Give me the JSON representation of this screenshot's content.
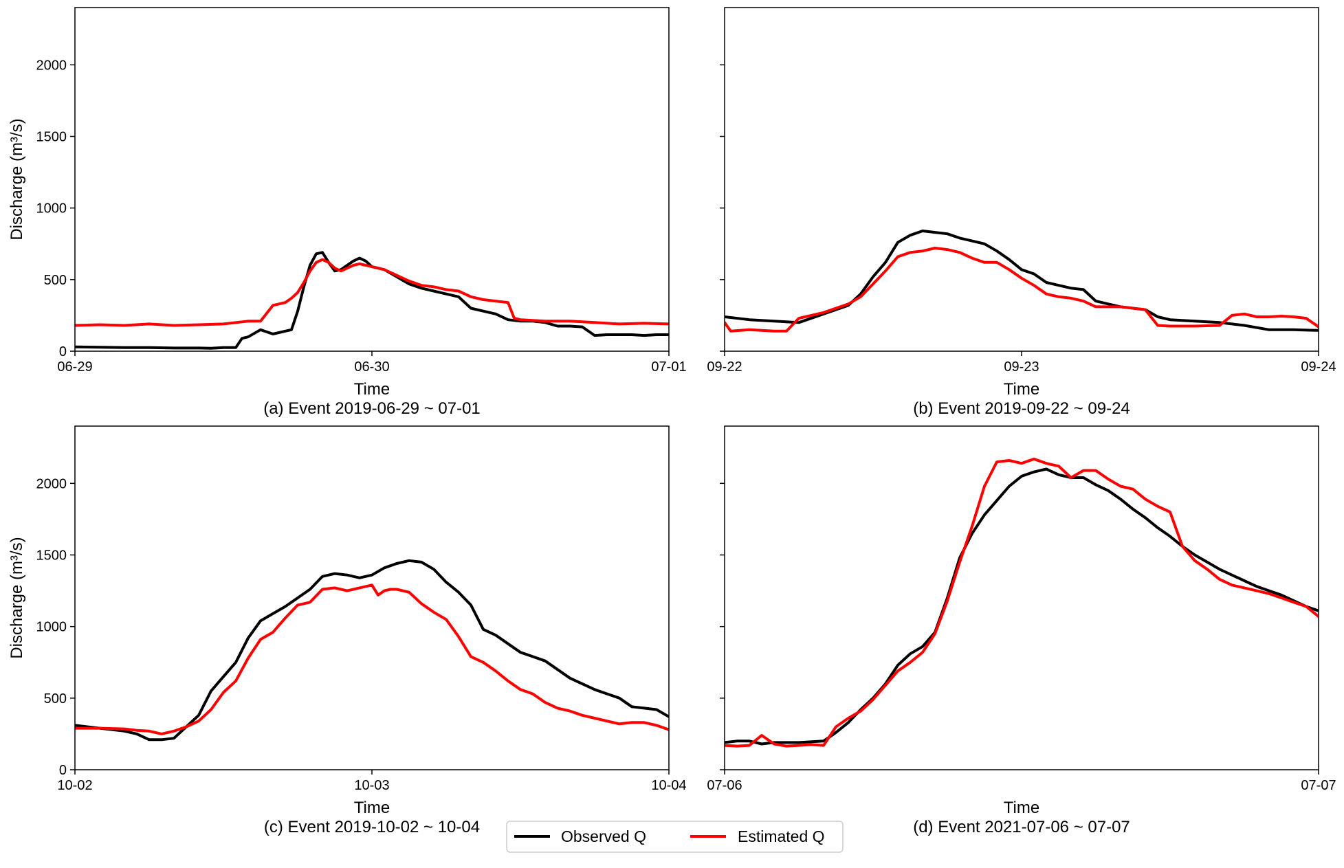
{
  "figure": {
    "legend": {
      "entries": [
        {
          "label": "Observed Q",
          "color": "#000000"
        },
        {
          "label": "Estimated Q",
          "color": "#ff0000"
        }
      ],
      "placement": "bottom-center"
    }
  },
  "chart_data": [
    {
      "type": "line",
      "title": "(a) Event 2019-06-29 ~ 07-01",
      "xlabel": "Time",
      "ylabel": "Discharge (m³/s)",
      "xlim": [
        0,
        48
      ],
      "ylim": [
        0,
        2400
      ],
      "yticks": [
        0,
        500,
        1000,
        1500,
        2000
      ],
      "xtick_labels": [
        {
          "x": 0,
          "label": "06-29"
        },
        {
          "x": 24,
          "label": "06-30"
        },
        {
          "x": 48,
          "label": "07-01"
        }
      ],
      "series": [
        {
          "name": "Observed Q",
          "color": "#000000",
          "x": [
            0,
            2,
            4,
            6,
            8,
            10,
            11,
            12,
            13,
            13.5,
            14,
            15,
            16,
            17,
            17.5,
            18,
            18.5,
            19,
            19.5,
            20,
            20.5,
            21,
            21.5,
            22,
            22.5,
            23,
            23.5,
            24,
            25,
            26,
            27,
            28,
            29,
            30,
            31,
            32,
            33,
            34,
            35,
            36,
            37,
            38,
            39,
            40,
            41,
            42,
            43,
            44,
            45,
            46,
            47,
            48
          ],
          "y": [
            30,
            28,
            25,
            25,
            22,
            22,
            20,
            25,
            25,
            90,
            100,
            150,
            120,
            140,
            150,
            280,
            450,
            600,
            680,
            690,
            620,
            560,
            570,
            600,
            630,
            650,
            630,
            590,
            570,
            520,
            470,
            440,
            420,
            400,
            380,
            300,
            280,
            260,
            220,
            210,
            210,
            200,
            175,
            175,
            170,
            110,
            115,
            115,
            115,
            110,
            115,
            115
          ]
        },
        {
          "name": "Estimated Q",
          "color": "#ff0000",
          "x": [
            0,
            2,
            4,
            6,
            8,
            10,
            12,
            14,
            15,
            16,
            17,
            17.5,
            18,
            18.5,
            19,
            19.5,
            20,
            20.5,
            21,
            21.5,
            22,
            22.5,
            23,
            23.5,
            24,
            25,
            26,
            27,
            28,
            29,
            30,
            31,
            32,
            33,
            34,
            35,
            35.5,
            36,
            38,
            40,
            42,
            44,
            46,
            48
          ],
          "y": [
            180,
            185,
            180,
            190,
            180,
            185,
            190,
            210,
            210,
            320,
            340,
            370,
            410,
            480,
            560,
            620,
            640,
            620,
            580,
            560,
            580,
            600,
            610,
            600,
            590,
            570,
            530,
            490,
            460,
            450,
            430,
            420,
            380,
            360,
            350,
            340,
            230,
            220,
            210,
            210,
            200,
            190,
            195,
            190
          ]
        }
      ]
    },
    {
      "type": "line",
      "title": "(b) Event 2019-09-22 ~ 09-24",
      "xlabel": "Time",
      "ylabel": "",
      "xlim": [
        0,
        48
      ],
      "ylim": [
        0,
        2400
      ],
      "yticks": [
        0,
        500,
        1000,
        1500,
        2000
      ],
      "xtick_labels": [
        {
          "x": 0,
          "label": "09-22"
        },
        {
          "x": 24,
          "label": "09-23"
        },
        {
          "x": 48,
          "label": "09-24"
        }
      ],
      "series": [
        {
          "name": "Observed Q",
          "color": "#000000",
          "x": [
            0,
            2,
            4,
            6,
            8,
            10,
            11,
            12,
            13,
            14,
            15,
            16,
            17,
            18,
            19,
            20,
            21,
            22,
            23,
            24,
            25,
            26,
            27,
            28,
            29,
            30,
            31,
            32,
            33,
            34,
            35,
            36,
            38,
            40,
            42,
            44,
            46,
            48
          ],
          "y": [
            240,
            220,
            210,
            200,
            260,
            320,
            400,
            520,
            620,
            760,
            810,
            840,
            830,
            820,
            790,
            770,
            750,
            700,
            640,
            570,
            540,
            480,
            460,
            440,
            430,
            350,
            330,
            310,
            300,
            290,
            240,
            220,
            210,
            200,
            180,
            150,
            150,
            145
          ]
        },
        {
          "name": "Estimated Q",
          "color": "#ff0000",
          "x": [
            0,
            0.5,
            2,
            4,
            5,
            6,
            8,
            10,
            11,
            12,
            13,
            14,
            15,
            16,
            17,
            18,
            19,
            20,
            21,
            22,
            23,
            24,
            25,
            26,
            27,
            28,
            29,
            30,
            32,
            34,
            35,
            36,
            38,
            40,
            41,
            42,
            43,
            44,
            45,
            46,
            47,
            48
          ],
          "y": [
            200,
            140,
            150,
            140,
            140,
            230,
            270,
            330,
            380,
            470,
            560,
            660,
            690,
            700,
            720,
            710,
            690,
            650,
            620,
            620,
            570,
            510,
            460,
            400,
            380,
            370,
            350,
            310,
            310,
            290,
            180,
            175,
            175,
            180,
            250,
            260,
            240,
            240,
            245,
            240,
            230,
            170
          ]
        }
      ]
    },
    {
      "type": "line",
      "title": "(c) Event 2019-10-02 ~ 10-04",
      "xlabel": "Time",
      "ylabel": "Discharge (m³/s)",
      "xlim": [
        0,
        48
      ],
      "ylim": [
        0,
        2400
      ],
      "yticks": [
        0,
        500,
        1000,
        1500,
        2000
      ],
      "xtick_labels": [
        {
          "x": 0,
          "label": "10-02"
        },
        {
          "x": 24,
          "label": "10-03"
        },
        {
          "x": 48,
          "label": "10-04"
        }
      ],
      "series": [
        {
          "name": "Observed Q",
          "color": "#000000",
          "x": [
            0,
            2,
            4,
            5,
            6,
            7,
            8,
            9,
            10,
            11,
            12,
            13,
            14,
            15,
            16,
            17,
            18,
            19,
            20,
            21,
            22,
            23,
            24,
            25,
            26,
            27,
            28,
            29,
            30,
            31,
            32,
            33,
            34,
            35,
            36,
            37,
            38,
            39,
            40,
            41,
            42,
            43,
            44,
            45,
            46,
            47,
            48
          ],
          "y": [
            310,
            290,
            270,
            250,
            210,
            210,
            220,
            300,
            380,
            550,
            650,
            750,
            920,
            1040,
            1090,
            1140,
            1200,
            1260,
            1350,
            1370,
            1360,
            1340,
            1360,
            1410,
            1440,
            1460,
            1450,
            1400,
            1310,
            1240,
            1150,
            980,
            940,
            880,
            820,
            790,
            760,
            700,
            640,
            600,
            560,
            530,
            500,
            440,
            430,
            420,
            370
          ]
        },
        {
          "name": "Estimated Q",
          "color": "#ff0000",
          "x": [
            0,
            2,
            4,
            5,
            6,
            7,
            8,
            9,
            10,
            11,
            12,
            13,
            14,
            15,
            16,
            17,
            18,
            19,
            20,
            21,
            22,
            23,
            24,
            24.5,
            25,
            25.5,
            26,
            27,
            28,
            29,
            30,
            31,
            32,
            33,
            34,
            35,
            36,
            37,
            38,
            39,
            40,
            41,
            42,
            43,
            44,
            45,
            46,
            47,
            48
          ],
          "y": [
            290,
            290,
            285,
            275,
            270,
            250,
            270,
            300,
            340,
            420,
            540,
            620,
            780,
            910,
            960,
            1060,
            1150,
            1170,
            1260,
            1270,
            1250,
            1270,
            1290,
            1220,
            1250,
            1260,
            1260,
            1240,
            1160,
            1100,
            1050,
            930,
            790,
            750,
            690,
            620,
            560,
            530,
            470,
            430,
            410,
            380,
            360,
            340,
            320,
            330,
            330,
            310,
            280
          ]
        }
      ]
    },
    {
      "type": "line",
      "title": "(d) Event 2021-07-06 ~ 07-07",
      "xlabel": "Time",
      "ylabel": "",
      "xlim": [
        0,
        24
      ],
      "ylim": [
        0,
        2400
      ],
      "yticks": [
        0,
        500,
        1000,
        1500,
        2000
      ],
      "xtick_labels": [
        {
          "x": 0,
          "label": "07-06"
        },
        {
          "x": 24,
          "label": "07-07"
        }
      ],
      "series": [
        {
          "name": "Observed Q",
          "color": "#000000",
          "x": [
            0,
            0.5,
            1,
            1.5,
            2,
            3,
            4,
            4.5,
            5,
            5.5,
            6,
            6.5,
            7,
            7.5,
            8,
            8.5,
            9,
            9.5,
            10,
            10.5,
            11,
            11.5,
            12,
            12.5,
            13,
            13.5,
            14,
            14.5,
            15,
            15.5,
            16,
            16.5,
            17,
            17.5,
            18,
            18.5,
            19,
            19.5,
            20,
            20.5,
            21,
            21.5,
            22,
            22.5,
            23,
            23.5,
            24
          ],
          "y": [
            190,
            200,
            200,
            180,
            190,
            190,
            200,
            260,
            330,
            420,
            500,
            600,
            730,
            810,
            860,
            960,
            1200,
            1480,
            1650,
            1780,
            1880,
            1980,
            2050,
            2080,
            2100,
            2060,
            2040,
            2040,
            1990,
            1950,
            1890,
            1820,
            1760,
            1690,
            1630,
            1560,
            1500,
            1450,
            1400,
            1360,
            1320,
            1280,
            1250,
            1220,
            1180,
            1140,
            1110
          ]
        },
        {
          "name": "Estimated Q",
          "color": "#ff0000",
          "x": [
            0,
            0.5,
            1,
            1.5,
            2,
            2.5,
            3,
            3.5,
            4,
            4.5,
            5,
            5.5,
            6,
            6.5,
            7,
            7.5,
            8,
            8.5,
            9,
            9.5,
            10,
            10.5,
            11,
            11.5,
            12,
            12.5,
            13,
            13.5,
            14,
            14.5,
            15,
            15.5,
            16,
            16.5,
            17,
            17.5,
            18,
            18.5,
            19,
            19.5,
            20,
            20.5,
            21,
            21.5,
            22,
            22.5,
            23,
            23.5,
            24
          ],
          "y": [
            170,
            165,
            170,
            240,
            180,
            165,
            170,
            175,
            170,
            300,
            360,
            410,
            490,
            590,
            690,
            750,
            820,
            950,
            1180,
            1450,
            1700,
            1980,
            2150,
            2160,
            2140,
            2170,
            2140,
            2120,
            2040,
            2090,
            2090,
            2030,
            1980,
            1960,
            1890,
            1840,
            1800,
            1560,
            1460,
            1400,
            1330,
            1290,
            1270,
            1250,
            1230,
            1200,
            1170,
            1140,
            1070
          ]
        }
      ]
    }
  ]
}
